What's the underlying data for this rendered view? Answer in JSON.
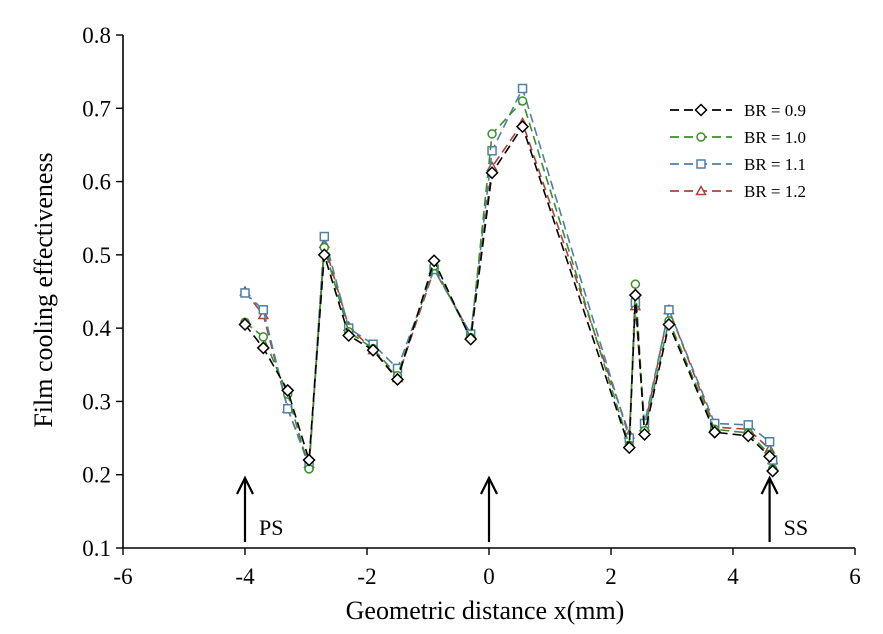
{
  "chart_data": {
    "type": "line",
    "xlabel": "Geometric distance x(mm)",
    "ylabel": "Film cooling effectiveness",
    "xlim": [
      -6,
      6
    ],
    "ylim": [
      0.1,
      0.8
    ],
    "xticks": [
      "-6",
      "-4",
      "-2",
      "0",
      "2",
      "4",
      "6"
    ],
    "yticks": [
      "0.1",
      "0.2",
      "0.3",
      "0.4",
      "0.5",
      "0.6",
      "0.7",
      "0.8"
    ],
    "grid": false,
    "legend_position": "top-right",
    "annotations": [
      {
        "text": "PS",
        "x": -4.0
      },
      {
        "text": "",
        "x": 0.0
      },
      {
        "text": "SS",
        "x": 4.6
      }
    ],
    "series": [
      {
        "name": "BR = 0.9",
        "color": "#000000",
        "marker": "diamond",
        "x": [
          -4.0,
          -3.7,
          -3.3,
          -2.95,
          -2.7,
          -2.3,
          -1.9,
          -1.5,
          -0.9,
          -0.3,
          0.05,
          0.55,
          2.3,
          2.4,
          2.55,
          2.95,
          3.7,
          4.25,
          4.6,
          4.65
        ],
        "y": [
          0.405,
          0.373,
          0.315,
          0.22,
          0.5,
          0.39,
          0.37,
          0.33,
          0.492,
          0.385,
          0.612,
          0.675,
          0.237,
          0.445,
          0.255,
          0.405,
          0.258,
          0.253,
          0.225,
          0.205
        ]
      },
      {
        "name": "BR = 1.0",
        "color": "#3a8f2a",
        "marker": "circle",
        "x": [
          -4.0,
          -3.7,
          -3.3,
          -2.95,
          -2.7,
          -2.3,
          -1.9,
          -1.5,
          -0.9,
          -0.3,
          0.05,
          0.55,
          2.3,
          2.4,
          2.55,
          2.95,
          3.7,
          4.25,
          4.6,
          4.65
        ],
        "y": [
          0.408,
          0.388,
          0.31,
          0.208,
          0.51,
          0.395,
          0.372,
          0.335,
          0.485,
          0.387,
          0.665,
          0.71,
          0.24,
          0.46,
          0.26,
          0.41,
          0.262,
          0.257,
          0.228,
          0.208
        ]
      },
      {
        "name": "BR = 1.1",
        "color": "#4f7fa8",
        "marker": "square",
        "x": [
          -4.0,
          -3.7,
          -3.3,
          -2.95,
          -2.7,
          -2.3,
          -1.9,
          -1.5,
          -0.9,
          -0.3,
          0.05,
          0.55,
          2.3,
          2.4,
          2.55,
          2.95,
          3.7,
          4.25,
          4.6,
          4.65
        ],
        "y": [
          0.448,
          0.425,
          0.29,
          0.212,
          0.525,
          0.4,
          0.378,
          0.345,
          0.48,
          0.392,
          0.642,
          0.727,
          0.25,
          0.435,
          0.27,
          0.425,
          0.27,
          0.268,
          0.245,
          0.22
        ]
      },
      {
        "name": "BR = 1.2",
        "color": "#a8443a",
        "marker": "triangle",
        "x": [
          -4.0,
          -3.7,
          -3.3,
          -2.95,
          -2.7,
          -2.3,
          -1.9,
          -1.5,
          -0.9,
          -0.3,
          0.05,
          0.55,
          2.3,
          2.4,
          2.55,
          2.95,
          3.7,
          4.25,
          4.6,
          4.65
        ],
        "y": [
          0.45,
          0.418,
          0.29,
          0.215,
          0.515,
          0.402,
          0.37,
          0.332,
          0.48,
          0.392,
          0.62,
          0.68,
          0.255,
          0.43,
          0.265,
          0.425,
          0.265,
          0.262,
          0.235,
          0.22
        ]
      }
    ]
  }
}
